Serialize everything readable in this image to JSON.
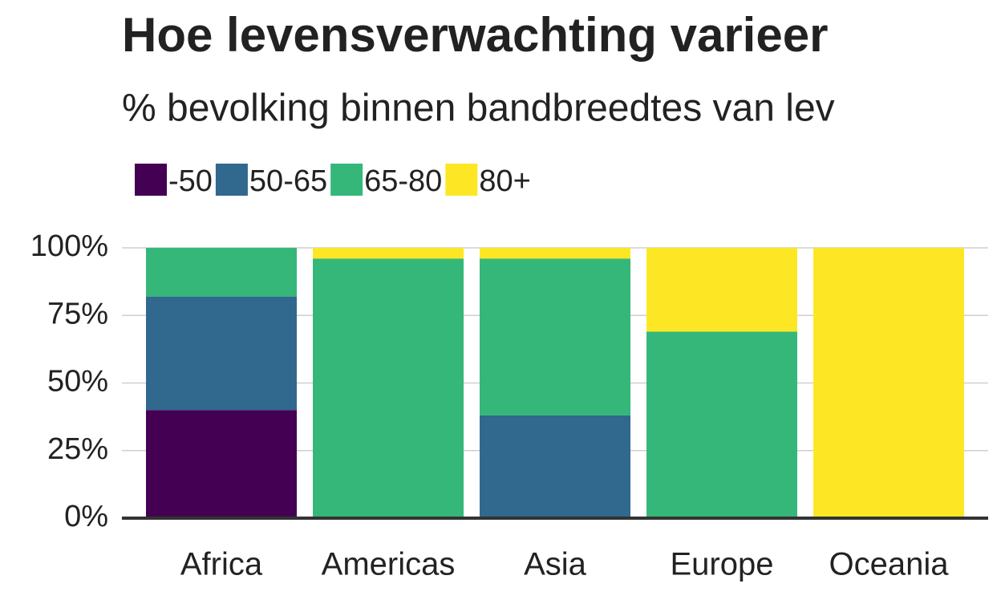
{
  "chart_data": {
    "type": "stacked-bar",
    "title": "Hoe levensverwachting varieer",
    "subtitle": "% bevolking binnen bandbreedtes van lev",
    "categories": [
      "Africa",
      "Americas",
      "Asia",
      "Europe",
      "Oceania"
    ],
    "series": [
      {
        "name": "-50",
        "color": "#440154",
        "values": [
          40,
          0,
          0,
          0,
          0
        ]
      },
      {
        "name": "50-65",
        "color": "#31688e",
        "values": [
          42,
          0,
          38,
          0,
          0
        ]
      },
      {
        "name": "65-80",
        "color": "#35b779",
        "values": [
          18,
          96,
          58,
          69,
          0
        ]
      },
      {
        "name": "80+",
        "color": "#fde725",
        "values": [
          0,
          4,
          4,
          31,
          100
        ]
      }
    ],
    "ylim": [
      0,
      100
    ],
    "yticks": [
      {
        "value": 0,
        "label": "0%"
      },
      {
        "value": 25,
        "label": "25%"
      },
      {
        "value": 50,
        "label": "50%"
      },
      {
        "value": 75,
        "label": "75%"
      },
      {
        "value": 100,
        "label": "100%"
      }
    ],
    "grid": true,
    "legend": "top-left"
  }
}
